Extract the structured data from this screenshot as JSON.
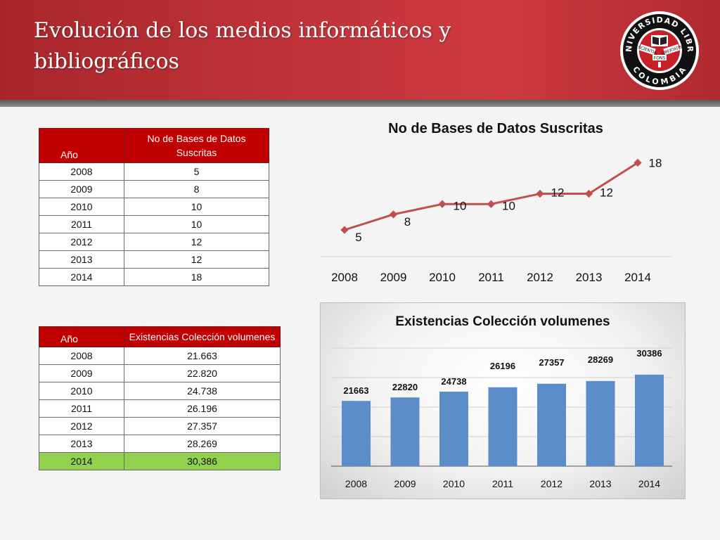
{
  "header": {
    "title": "Evolución de los  medios  informáticos  y bibliográficos",
    "logo": {
      "top_text": "UNIVERSIDAD LIBRE",
      "bottom_text": "COLOMBIA",
      "left_ribbon": "SCIENTIA",
      "right_ribbon": "LIBERTATIS",
      "center_ribbon": "FONS"
    }
  },
  "table_bases": {
    "col_year": "Año",
    "col_value": "No de Bases de Datos Suscritas",
    "rows": [
      {
        "year": "2008",
        "value": "5"
      },
      {
        "year": "2009",
        "value": "8"
      },
      {
        "year": "2010",
        "value": "10"
      },
      {
        "year": "2011",
        "value": "10"
      },
      {
        "year": "2012",
        "value": "12"
      },
      {
        "year": "2013",
        "value": "12"
      },
      {
        "year": "2014",
        "value": "18"
      }
    ]
  },
  "table_volumes": {
    "col_year": "Año",
    "col_value": "Existencias Colección volumenes",
    "rows": [
      {
        "year": "2008",
        "value": "21.663"
      },
      {
        "year": "2009",
        "value": "22.820"
      },
      {
        "year": "2010",
        "value": "24.738"
      },
      {
        "year": "2011",
        "value": "26.196"
      },
      {
        "year": "2012",
        "value": "27.357"
      },
      {
        "year": "2013",
        "value": "28.269"
      },
      {
        "year": "2014",
        "value": "30,386",
        "highlight": true
      }
    ]
  },
  "colors": {
    "header_red": "#c2343a",
    "table_header_red": "#c00000",
    "highlight_green": "#92d050",
    "line_color": "#c0504d",
    "bar_color": "#5b8ec9"
  },
  "chart_data": [
    {
      "type": "line",
      "title": "No de Bases de Datos Suscritas",
      "categories": [
        "2008",
        "2009",
        "2010",
        "2011",
        "2012",
        "2013",
        "2014"
      ],
      "series": [
        {
          "values": [
            5,
            8,
            10,
            10,
            12,
            12,
            18
          ]
        }
      ],
      "ylim": [
        0,
        20
      ],
      "grid": false,
      "legend": "none"
    },
    {
      "type": "bar",
      "title": "Existencias Colección volumenes",
      "categories": [
        "2008",
        "2009",
        "2010",
        "2011",
        "2012",
        "2013",
        "2014"
      ],
      "values": [
        21663,
        22820,
        24738,
        26196,
        27357,
        28269,
        30386
      ],
      "ylim": [
        0,
        35000
      ],
      "grid": true,
      "legend": "none"
    }
  ]
}
